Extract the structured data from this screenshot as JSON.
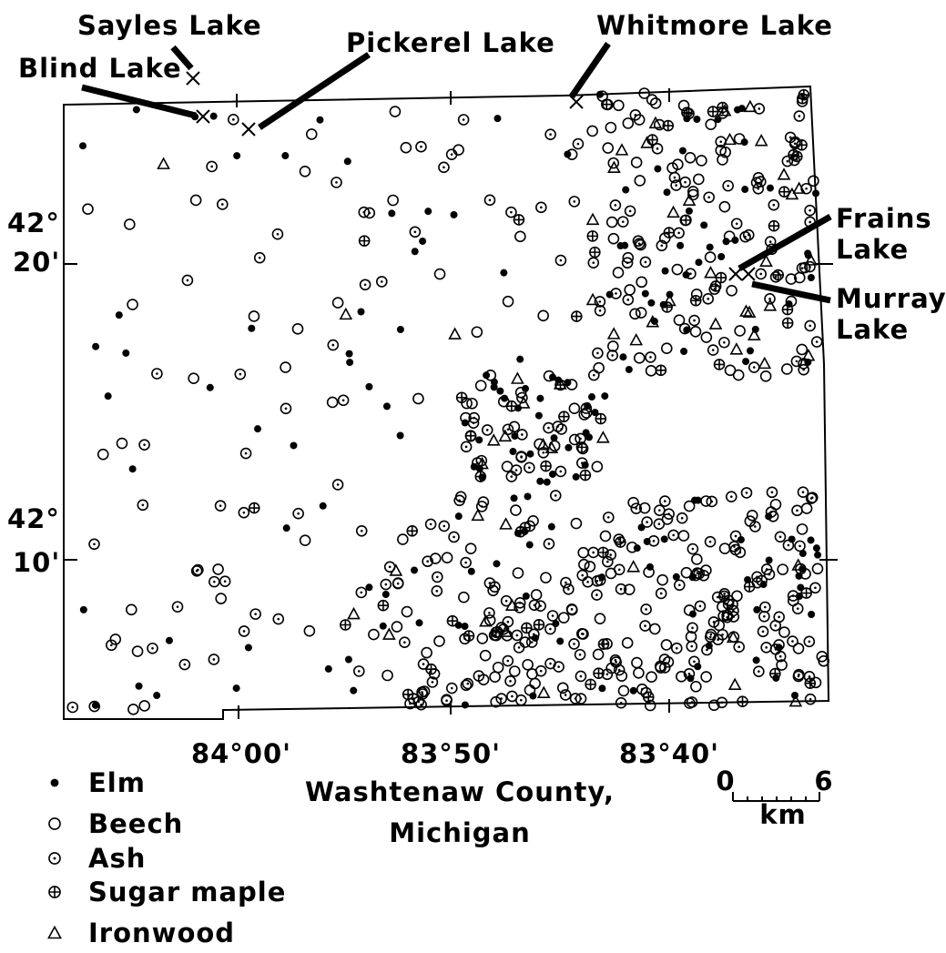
{
  "lakes": [
    {
      "lines": [
        "Sayles Lake"
      ]
    },
    {
      "lines": [
        "Blind Lake"
      ]
    },
    {
      "lines": [
        "Pickerel Lake"
      ]
    },
    {
      "lines": [
        "Whitmore Lake"
      ]
    },
    {
      "lines": [
        "Frains",
        "Lake"
      ]
    },
    {
      "lines": [
        "Murray",
        "Lake"
      ]
    }
  ],
  "latitude_labels": [
    {
      "degrees": "42°",
      "minutes": "20'"
    },
    {
      "degrees": "42°",
      "minutes": "10'"
    }
  ],
  "longitude_labels": [
    "84°00'",
    "83°50'",
    "83°40'"
  ],
  "title": [
    "Washtenaw County,",
    "Michigan"
  ],
  "legend": [
    "Elm",
    "Beech",
    "Ash",
    "Sugar maple",
    "Ironwood"
  ],
  "scale": {
    "start": "0",
    "end": "6",
    "unit": "km"
  }
}
